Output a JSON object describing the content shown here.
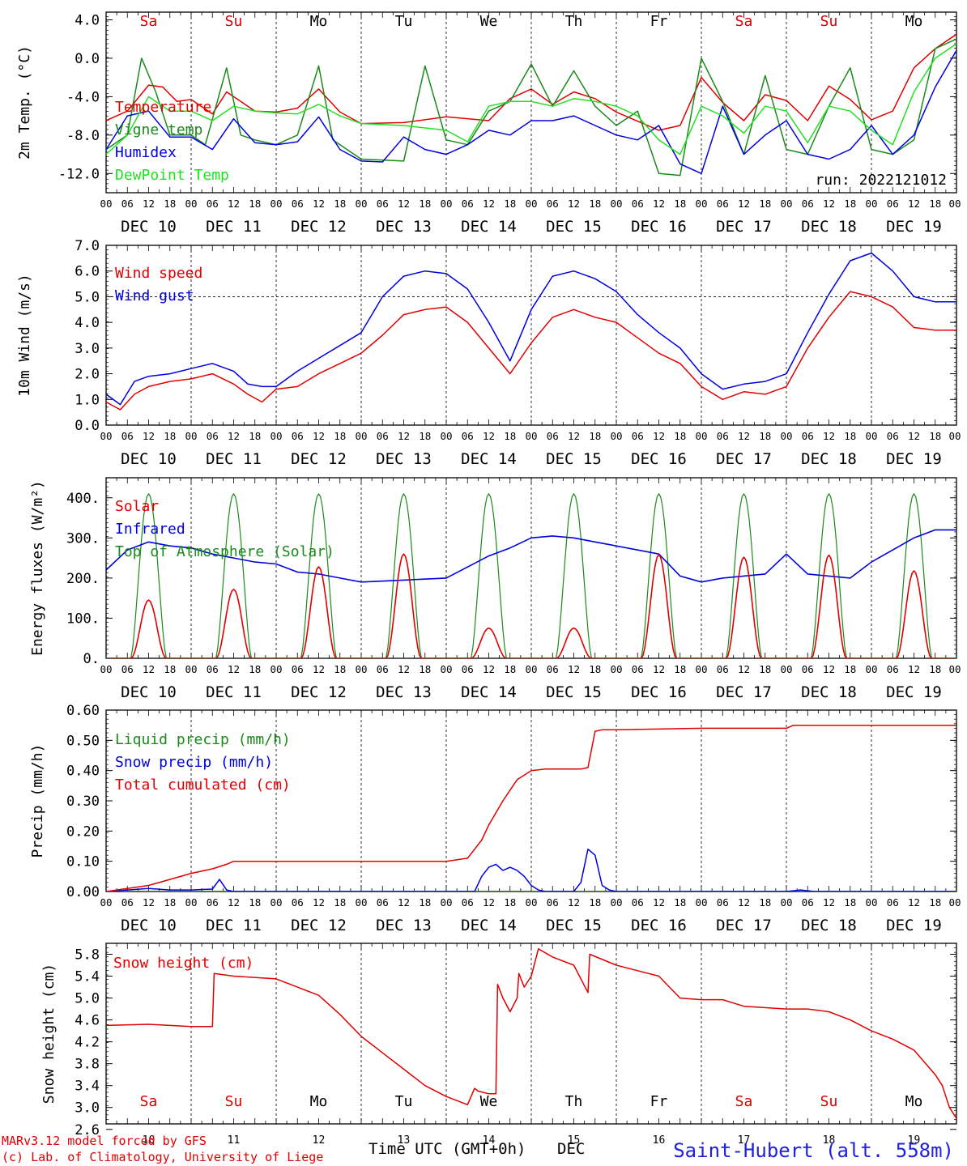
{
  "days": [
    "DEC 10",
    "DEC 11",
    "DEC 12",
    "DEC 13",
    "DEC 14",
    "DEC 15",
    "DEC 16",
    "DEC 17",
    "DEC 18",
    "DEC 19"
  ],
  "weekdays": [
    "Sa",
    "Su",
    "Mo",
    "Tu",
    "We",
    "Th",
    "Fr",
    "Sa",
    "Su",
    "Mo"
  ],
  "weekday_colors": [
    "#e00000",
    "#e00000",
    "#000000",
    "#000000",
    "#000000",
    "#000000",
    "#000000",
    "#e00000",
    "#e00000",
    "#000000"
  ],
  "hour_ticks": [
    "00",
    "06",
    "12",
    "18"
  ],
  "final_tick": "00",
  "bottom_day_numbers": [
    "10",
    "11",
    "12",
    "13",
    "14",
    "15",
    "16",
    "17",
    "18",
    "19"
  ],
  "xlabel": "Time UTC (GMT+0h)",
  "xlabel_month": "DEC",
  "credit_line1": "MARv3.12 model forced by GFS",
  "credit_line2": "(c) Lab. of Climatology, University of Liege",
  "station": "Saint-Hubert (alt. 558m)",
  "chart_data": [
    {
      "type": "line",
      "ylabel": "2m Temp. (°C)",
      "ylim": [
        -14.0,
        4.8
      ],
      "yticks": [
        "4.0",
        "0.0",
        "-4.0",
        "-8.0",
        "-12.0"
      ],
      "ytick_values": [
        4,
        0,
        -4,
        -8,
        -12
      ],
      "annotation": "run: 2022121012",
      "x_unit": "hours since DEC 10 00 UTC",
      "series": [
        {
          "name": "Temperature",
          "color": "#e00000",
          "x": [
            0,
            6,
            12,
            16,
            20,
            24,
            30,
            34,
            38,
            42,
            48,
            54,
            60,
            66,
            72,
            84,
            96,
            108,
            114,
            120,
            126,
            132,
            138,
            144,
            156,
            162,
            168,
            174,
            180,
            186,
            192,
            198,
            204,
            210,
            216,
            222,
            228,
            234,
            240
          ],
          "values": [
            -6.5,
            -5.5,
            -2.8,
            -3.0,
            -4.5,
            -4.3,
            -5.8,
            -3.5,
            -4.5,
            -5.5,
            -5.6,
            -5.2,
            -3.2,
            -5.6,
            -6.8,
            -6.7,
            -6.1,
            -6.5,
            -4.2,
            -3.2,
            -4.8,
            -3.5,
            -4.2,
            -5.6,
            -7.5,
            -7.0,
            -2.0,
            -4.6,
            -6.5,
            -3.8,
            -4.4,
            -6.5,
            -2.9,
            -4.3,
            -6.4,
            -5.5,
            -1.0,
            1.0,
            2.5
          ]
        },
        {
          "name": "Vigne temp",
          "color": "#1a8a1a",
          "x": [
            0,
            6,
            10,
            14,
            18,
            24,
            28,
            34,
            38,
            42,
            48,
            54,
            60,
            64,
            72,
            84,
            90,
            96,
            102,
            108,
            114,
            120,
            126,
            132,
            138,
            144,
            150,
            156,
            162,
            168,
            174,
            180,
            186,
            192,
            198,
            204,
            210,
            216,
            222,
            228,
            234,
            240
          ],
          "values": [
            -9.5,
            -8.0,
            0.0,
            -3.5,
            -8.0,
            -8.0,
            -9.0,
            -1.0,
            -8.0,
            -8.5,
            -9.0,
            -8.0,
            -0.8,
            -8.5,
            -10.5,
            -10.7,
            -0.8,
            -8.5,
            -9.0,
            -5.5,
            -4.5,
            -0.6,
            -5.0,
            -1.3,
            -5.0,
            -7.0,
            -5.5,
            -12.0,
            -12.2,
            0.0,
            -4.5,
            -10.0,
            -1.8,
            -9.5,
            -10.0,
            -5.0,
            -1.0,
            -9.5,
            -10.0,
            -8.5,
            1.0,
            2.0
          ]
        },
        {
          "name": "Humidex",
          "color": "#0000e0",
          "x": [
            0,
            6,
            12,
            18,
            24,
            30,
            36,
            42,
            48,
            54,
            60,
            66,
            72,
            78,
            84,
            90,
            96,
            102,
            108,
            114,
            120,
            126,
            132,
            138,
            144,
            150,
            156,
            162,
            168,
            174,
            180,
            186,
            192,
            198,
            204,
            210,
            216,
            222,
            228,
            234,
            240
          ],
          "values": [
            -9.5,
            -6.0,
            -5.5,
            -8.2,
            -8.2,
            -9.5,
            -6.3,
            -8.8,
            -9.0,
            -8.7,
            -6.1,
            -9.5,
            -10.7,
            -10.8,
            -8.2,
            -9.5,
            -10.0,
            -9.0,
            -7.5,
            -8.0,
            -6.5,
            -6.5,
            -6.0,
            -7.0,
            -8.0,
            -8.5,
            -7.0,
            -11.0,
            -12.0,
            -5.0,
            -10.0,
            -8.0,
            -6.5,
            -10.0,
            -10.5,
            -9.5,
            -7.0,
            -10.0,
            -8.0,
            -3.0,
            0.8
          ]
        },
        {
          "name": "DewPoint Temp",
          "color": "#22e022",
          "x": [
            0,
            6,
            12,
            18,
            24,
            30,
            36,
            42,
            48,
            54,
            60,
            66,
            72,
            84,
            96,
            102,
            108,
            114,
            120,
            126,
            132,
            138,
            144,
            150,
            156,
            162,
            168,
            174,
            180,
            186,
            192,
            198,
            204,
            210,
            216,
            222,
            228,
            234,
            240
          ],
          "values": [
            -10.0,
            -8.0,
            -4.0,
            -5.5,
            -5.5,
            -6.5,
            -5.0,
            -5.5,
            -5.7,
            -5.8,
            -4.8,
            -6.0,
            -6.8,
            -7.0,
            -7.5,
            -8.7,
            -5.0,
            -4.5,
            -4.5,
            -5.0,
            -4.2,
            -4.5,
            -5.0,
            -6.0,
            -8.5,
            -10.0,
            -5.0,
            -6.0,
            -7.8,
            -5.0,
            -5.5,
            -8.8,
            -5.0,
            -5.5,
            -7.5,
            -9.0,
            -3.5,
            0.0,
            1.5
          ]
        }
      ]
    },
    {
      "type": "line",
      "ylabel": "10m Wind (m/s)",
      "ylim": [
        0.0,
        7.0
      ],
      "yticks": [
        "7.0",
        "6.0",
        "5.0",
        "4.0",
        "3.0",
        "2.0",
        "1.0",
        "0.0"
      ],
      "ytick_values": [
        7,
        6,
        5,
        4,
        3,
        2,
        1,
        0
      ],
      "refline": 5.0,
      "x_unit": "hours since DEC 10 00 UTC",
      "series": [
        {
          "name": "Wind speed",
          "color": "#e00000",
          "x": [
            0,
            4,
            8,
            12,
            18,
            24,
            30,
            36,
            40,
            44,
            48,
            54,
            60,
            66,
            72,
            78,
            84,
            90,
            96,
            102,
            108,
            114,
            120,
            126,
            132,
            138,
            144,
            150,
            156,
            162,
            168,
            174,
            180,
            186,
            192,
            198,
            204,
            210,
            216,
            222,
            228,
            234,
            240
          ],
          "values": [
            0.9,
            0.6,
            1.2,
            1.5,
            1.7,
            1.8,
            2.0,
            1.6,
            1.2,
            0.9,
            1.4,
            1.5,
            2.0,
            2.4,
            2.8,
            3.5,
            4.3,
            4.5,
            4.6,
            4.0,
            3.0,
            2.0,
            3.2,
            4.2,
            4.5,
            4.2,
            4.0,
            3.4,
            2.8,
            2.4,
            1.5,
            1.0,
            1.3,
            1.2,
            1.5,
            3.0,
            4.2,
            5.2,
            5.0,
            4.6,
            3.8,
            3.7,
            3.7
          ]
        },
        {
          "name": "Wind gust",
          "color": "#0000e0",
          "x": [
            0,
            4,
            8,
            12,
            18,
            24,
            30,
            36,
            40,
            44,
            48,
            54,
            60,
            66,
            72,
            78,
            84,
            90,
            96,
            102,
            108,
            114,
            120,
            126,
            132,
            138,
            144,
            150,
            156,
            162,
            168,
            174,
            180,
            186,
            192,
            198,
            204,
            210,
            216,
            222,
            228,
            234,
            240
          ],
          "values": [
            1.2,
            0.8,
            1.7,
            1.9,
            2.0,
            2.2,
            2.4,
            2.1,
            1.6,
            1.5,
            1.5,
            2.1,
            2.6,
            3.1,
            3.6,
            5.0,
            5.8,
            6.0,
            5.9,
            5.3,
            4.0,
            2.5,
            4.5,
            5.8,
            6.0,
            5.7,
            5.2,
            4.3,
            3.6,
            3.0,
            2.0,
            1.4,
            1.6,
            1.7,
            2.0,
            3.6,
            5.1,
            6.4,
            6.7,
            6.0,
            5.0,
            4.8,
            4.8
          ]
        }
      ]
    },
    {
      "type": "line",
      "ylabel": "Energy fluxes (W/m²)",
      "ylim": [
        0,
        450
      ],
      "yticks": [
        "400.",
        "300.",
        "200.",
        "100.",
        "0."
      ],
      "ytick_values": [
        400,
        300,
        200,
        100,
        0
      ],
      "x_unit": "hours since DEC 10 00 UTC",
      "solar_peaks": [
        145,
        172,
        228,
        260,
        75,
        75,
        258,
        252,
        257,
        218
      ],
      "toa_peak": 410,
      "series": [
        {
          "name": "Solar",
          "color": "#e00000"
        },
        {
          "name": "Infrared",
          "color": "#0000e0",
          "x": [
            0,
            6,
            12,
            18,
            24,
            30,
            36,
            42,
            48,
            54,
            60,
            66,
            72,
            84,
            96,
            108,
            114,
            120,
            126,
            132,
            138,
            144,
            150,
            156,
            162,
            168,
            174,
            180,
            186,
            192,
            198,
            204,
            210,
            216,
            222,
            228,
            234,
            240
          ],
          "values": [
            220,
            270,
            290,
            280,
            275,
            260,
            250,
            240,
            235,
            215,
            210,
            200,
            190,
            195,
            200,
            255,
            275,
            300,
            305,
            300,
            290,
            280,
            270,
            260,
            205,
            190,
            200,
            205,
            210,
            260,
            210,
            205,
            200,
            240,
            270,
            300,
            320,
            320
          ]
        },
        {
          "name": "Top of Atmosphere (Solar)",
          "color": "#1a8a1a"
        }
      ]
    },
    {
      "type": "line",
      "ylabel": "Precip (mm/h)",
      "ylim": [
        0.0,
        0.6
      ],
      "yticks": [
        "0.60",
        "0.50",
        "0.40",
        "0.30",
        "0.20",
        "0.10",
        "0.00"
      ],
      "ytick_values": [
        0.6,
        0.5,
        0.4,
        0.3,
        0.2,
        0.1,
        0.0
      ],
      "x_unit": "hours since DEC 10 00 UTC",
      "series": [
        {
          "name": "Liquid precip (mm/h)",
          "color": "#1a8a1a",
          "x": [
            0,
            240
          ],
          "values": [
            0,
            0
          ]
        },
        {
          "name": "Snow precip (mm/h)",
          "color": "#0000e0",
          "x": [
            0,
            6,
            12,
            18,
            24,
            30,
            32,
            34,
            36,
            48,
            96,
            104,
            106,
            108,
            110,
            112,
            114,
            116,
            118,
            120,
            122,
            124,
            132,
            134,
            136,
            138,
            140,
            142,
            144,
            192,
            196,
            200,
            240
          ],
          "values": [
            0,
            0.005,
            0.01,
            0.005,
            0.005,
            0.008,
            0.04,
            0.005,
            0,
            0,
            0,
            0,
            0.05,
            0.08,
            0.09,
            0.07,
            0.08,
            0.07,
            0.05,
            0.02,
            0.005,
            0,
            0,
            0.03,
            0.14,
            0.12,
            0.02,
            0.005,
            0,
            0,
            0.005,
            0,
            0
          ]
        },
        {
          "name": "Total cumulated (cm)",
          "color": "#e00000",
          "x": [
            0,
            12,
            18,
            24,
            30,
            34,
            36,
            48,
            96,
            102,
            106,
            108,
            112,
            116,
            120,
            124,
            126,
            128,
            130,
            132,
            134,
            136,
            138,
            140,
            142,
            144,
            168,
            192,
            194,
            198,
            240
          ],
          "values": [
            0,
            0.02,
            0.04,
            0.06,
            0.075,
            0.09,
            0.1,
            0.1,
            0.1,
            0.11,
            0.17,
            0.22,
            0.3,
            0.37,
            0.4,
            0.405,
            0.405,
            0.405,
            0.405,
            0.405,
            0.405,
            0.41,
            0.53,
            0.535,
            0.535,
            0.535,
            0.54,
            0.54,
            0.55,
            0.55,
            0.55
          ]
        }
      ]
    },
    {
      "type": "line",
      "ylabel": "Snow height (cm)",
      "ylim": [
        2.7,
        6.0
      ],
      "yticks": [
        "5.8",
        "5.4",
        "5.0",
        "4.6",
        "4.2",
        "3.8",
        "3.4",
        "3.0",
        "2.6"
      ],
      "ytick_values": [
        5.8,
        5.4,
        5.0,
        4.6,
        4.2,
        3.8,
        3.4,
        3.0,
        2.6
      ],
      "x_unit": "hours since DEC 10 00 UTC",
      "series": [
        {
          "name": "Snow height (cm)",
          "color": "#e00000",
          "x": [
            0,
            12,
            24,
            30,
            30.5,
            36,
            48,
            54,
            60,
            66,
            72,
            78,
            84,
            90,
            96,
            102,
            104,
            105,
            108,
            110,
            110.5,
            112,
            114,
            116,
            116.5,
            118,
            120,
            122,
            126,
            132,
            136,
            136.5,
            144,
            150,
            156,
            159,
            162,
            168,
            174,
            180,
            192,
            198,
            204,
            210,
            216,
            222,
            228,
            234,
            236,
            238,
            240
          ],
          "values": [
            4.5,
            4.52,
            4.48,
            4.48,
            5.45,
            5.4,
            5.35,
            5.2,
            5.05,
            4.7,
            4.3,
            4.0,
            3.7,
            3.4,
            3.2,
            3.05,
            3.35,
            3.3,
            3.25,
            3.25,
            5.25,
            5.0,
            4.75,
            5.0,
            5.45,
            5.2,
            5.4,
            5.9,
            5.75,
            5.6,
            5.1,
            5.8,
            5.6,
            5.5,
            5.4,
            5.2,
            5.0,
            4.97,
            4.97,
            4.85,
            4.8,
            4.8,
            4.75,
            4.6,
            4.4,
            4.25,
            4.05,
            3.6,
            3.4,
            3.0,
            2.8
          ]
        }
      ]
    }
  ]
}
